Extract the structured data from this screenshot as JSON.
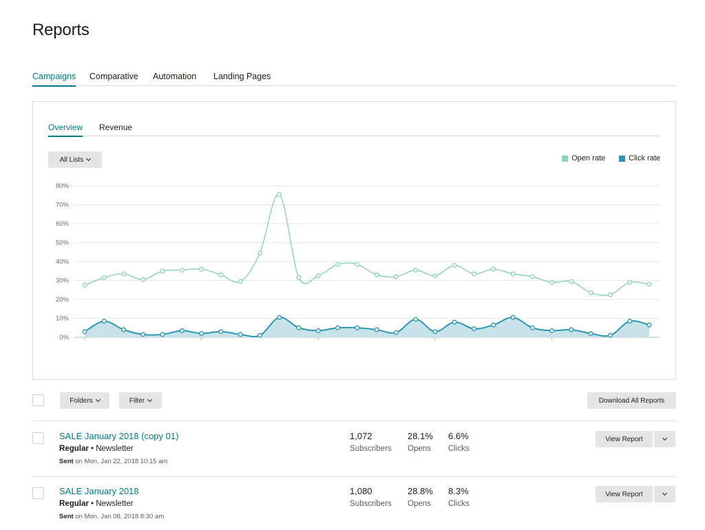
{
  "page": {
    "title": "Reports"
  },
  "tabs": [
    {
      "label": "Campaigns",
      "active": true
    },
    {
      "label": "Comparative",
      "active": false
    },
    {
      "label": "Automation",
      "active": false
    },
    {
      "label": "Landing Pages",
      "active": false
    }
  ],
  "card": {
    "subtabs": [
      {
        "label": "Overview",
        "active": true
      },
      {
        "label": "Revenue",
        "active": false
      }
    ],
    "list_filter": "All Lists",
    "legend": [
      {
        "label": "Open rate",
        "color": "#8fd3b9"
      },
      {
        "label": "Click rate",
        "color": "#2a97b4"
      }
    ]
  },
  "chart_data": {
    "type": "area",
    "yticks": [
      "80%",
      "70%",
      "60%",
      "50%",
      "40%",
      "30%",
      "20%",
      "10%",
      "0%"
    ],
    "ylim": [
      0,
      80
    ],
    "grid": true,
    "legend_position": "top-right",
    "series": [
      {
        "name": "Open rate",
        "color": "#8fd3b9",
        "fill": false,
        "values": [
          27.5,
          31.5,
          33.5,
          30.5,
          35,
          35.5,
          36,
          33,
          29.5,
          44.5,
          75.5,
          31.5,
          32.5,
          38.5,
          38.5,
          33,
          32,
          35.5,
          32.5,
          38,
          33.5,
          36,
          33.5,
          32,
          29,
          29.5,
          23.5,
          22.5,
          29,
          28
        ]
      },
      {
        "name": "Click rate",
        "color": "#2a97b4",
        "fill": true,
        "fill_color": "#c8e2ea",
        "values": [
          3,
          8.5,
          4,
          1.5,
          1.5,
          3.5,
          2,
          3,
          1.5,
          1,
          10.5,
          5,
          3.5,
          5,
          5,
          4,
          2.5,
          9.5,
          3,
          8,
          4.5,
          6.5,
          10.5,
          5,
          3.5,
          4,
          2,
          1,
          8.5,
          6.5
        ]
      }
    ]
  },
  "toolbar": {
    "folders_label": "Folders",
    "filter_label": "Filter",
    "download_label": "Download All Reports"
  },
  "campaigns": [
    {
      "title": "SALE January 2018 (copy 01)",
      "type": "Regular",
      "subtype": "Newsletter",
      "sent_label": "Sent",
      "sent_date": "on Mon, Jan 22, 2018 10:15 am",
      "subscribers": "1,072",
      "subscribers_label": "Subscribers",
      "opens": "28.1%",
      "opens_label": "Opens",
      "clicks": "6.6%",
      "clicks_label": "Clicks",
      "action_label": "View Report"
    },
    {
      "title": "SALE January 2018",
      "type": "Regular",
      "subtype": "Newsletter",
      "sent_label": "Sent",
      "sent_date": "on Mon, Jan 08, 2018 8:30 am",
      "subscribers": "1,080",
      "subscribers_label": "Subscribers",
      "opens": "28.8%",
      "opens_label": "Opens",
      "clicks": "8.3%",
      "clicks_label": "Clicks",
      "action_label": "View Report"
    }
  ]
}
